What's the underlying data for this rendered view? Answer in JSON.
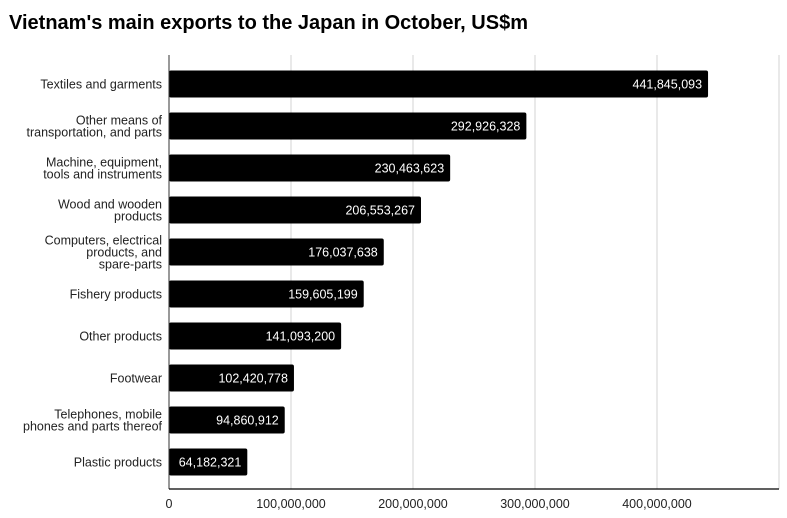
{
  "chart_data": {
    "type": "bar",
    "orientation": "horizontal",
    "title": "Vietnam's main exports to the Japan in October, US$m",
    "xlabel": "",
    "ylabel": "",
    "categories": [
      "Textiles and garments",
      "Other means of transportation, and parts",
      "Machine, equipment, tools and instruments",
      "Wood and wooden products",
      "Computers, electrical products, and spare-parts",
      "Fishery products",
      "Other products",
      "Footwear",
      "Telephones, mobile phones and parts thereof",
      "Plastic products"
    ],
    "category_lines": [
      [
        "Textiles and garments"
      ],
      [
        "Other means of",
        "transportation, and parts"
      ],
      [
        "Machine, equipment,",
        "tools and instruments"
      ],
      [
        "Wood and wooden",
        "products"
      ],
      [
        "Computers, electrical",
        "products, and",
        "spare-parts"
      ],
      [
        "Fishery products"
      ],
      [
        "Other products"
      ],
      [
        "Footwear"
      ],
      [
        "Telephones, mobile",
        "phones and parts thereof"
      ],
      [
        "Plastic products"
      ]
    ],
    "values": [
      441845093,
      292926328,
      230463623,
      206553267,
      176037638,
      159605199,
      141093200,
      102420778,
      94860912,
      64182321
    ],
    "data_labels": [
      "441,845,093",
      "292,926,328",
      "230,463,623",
      "206,553,267",
      "176,037,638",
      "159,605,199",
      "141,093,200",
      "102,420,778",
      "94,860,912",
      "64,182,321"
    ],
    "xlim": [
      0,
      500000000
    ],
    "x_ticks": [
      0,
      100000000,
      200000000,
      300000000,
      400000000
    ],
    "x_tick_labels": [
      "0",
      "100,000,000",
      "200,000,000",
      "300,000,000",
      "400,000,000"
    ],
    "grid": true,
    "legend": "none",
    "bar_color": "#000000",
    "grid_color": "#dddddd"
  }
}
